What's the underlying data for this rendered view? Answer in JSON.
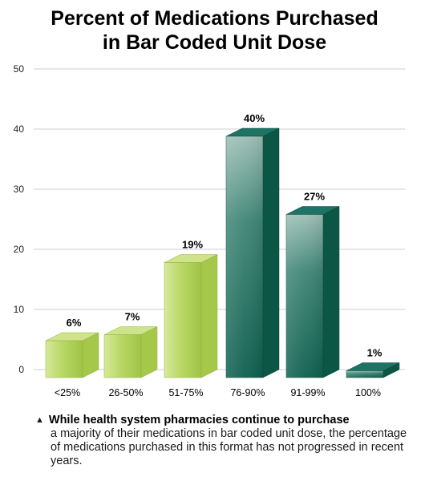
{
  "title": {
    "line1": "Percent of Medications Purchased",
    "line2": "in Bar Coded Unit Dose"
  },
  "colors": {
    "light_bar": "#a9cc4e",
    "dark_bar": "#0f6454",
    "grid": "#bfbfbf"
  },
  "chart_data": {
    "type": "bar",
    "title": "Percent of Medications Purchased in Bar Coded Unit Dose",
    "xlabel": "",
    "ylabel": "",
    "categories": [
      "<25%",
      "26-50%",
      "51-75%",
      "76-90%",
      "91-99%",
      "100%"
    ],
    "values": [
      6,
      7,
      19,
      40,
      27,
      1
    ],
    "data_labels": [
      "6%",
      "7%",
      "19%",
      "40%",
      "27%",
      "1%"
    ],
    "bar_colors": [
      "light",
      "light",
      "light",
      "dark",
      "dark",
      "dark"
    ],
    "yticks": [
      0,
      10,
      20,
      30,
      40,
      50
    ],
    "ylim": [
      0,
      50
    ],
    "grid": true,
    "legend": "none"
  },
  "note": {
    "marker": "▲",
    "bold": "While health system pharmacies continue to purchase",
    "rest": "a majority of their medications in bar coded unit dose, the percentage of medications purchased in this format has not progressed in recent years."
  }
}
